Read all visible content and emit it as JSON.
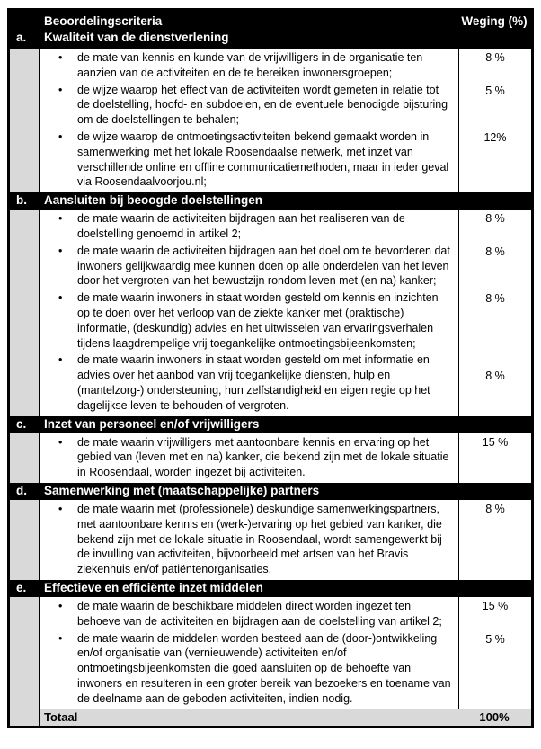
{
  "table": {
    "bullet_char": "•",
    "header": {
      "criteria": "Beoordelingscriteria",
      "weging": "Weging (%)"
    },
    "sections": [
      {
        "letter": "a.",
        "title": "Kwaliteit van de dienstverlening",
        "bullets": [
          {
            "text": "de mate van kennis en kunde van de vrijwilligers in de organisatie ten aanzien van de activiteiten en de te bereiken inwonersgroepen;",
            "weight": "8 %"
          },
          {
            "text": "de wijze waarop het effect van de activiteiten wordt gemeten in relatie tot de doelstelling, hoofd- en subdoelen, en de eventuele benodigde bijsturing om de doelstellingen te behalen;",
            "weight": "5 %"
          },
          {
            "text": "de wijze waarop de ontmoetingsactiviteiten bekend gemaakt worden in samenwerking met het lokale Roosendaalse netwerk, met inzet van verschillende online en offline communicatiemethoden, maar in ieder geval via Roosendaalvoorjou.nl;",
            "weight": "12%"
          }
        ]
      },
      {
        "letter": "b.",
        "title": "Aansluiten bij beoogde doelstellingen",
        "bullets": [
          {
            "text": "de mate waarin de activiteiten bijdragen aan het realiseren van de doelstelling genoemd in artikel 2;",
            "weight": "8 %"
          },
          {
            "text": "de mate waarin de activiteiten bijdragen aan het doel om te bevorderen dat inwoners gelijkwaardig mee kunnen doen op alle onderdelen van het leven door het vergroten van het bewustzijn rondom leven met (en na) kanker;",
            "weight": "8 %"
          },
          {
            "text": "de mate waarin inwoners in staat worden gesteld om kennis en inzichten op te doen over het verloop van de ziekte kanker met (praktische) informatie, (deskundig) advies en het uitwisselen van ervaringsverhalen tijdens laagdrempelige vrij toegankelijke ontmoetingsbijeenkomsten;",
            "weight": "8 %"
          },
          {
            "text": "de mate waarin inwoners in staat worden gesteld om met informatie en advies over het aanbod van vrij toegankelijke diensten, hulp en (mantelzorg-) ondersteuning, hun zelfstandigheid en eigen regie op het dagelijkse leven te behouden of vergroten.",
            "weight": "8 %"
          }
        ]
      },
      {
        "letter": "c.",
        "title": "Inzet van personeel en/of vrijwilligers",
        "bullets": [
          {
            "text": "de mate waarin vrijwilligers met aantoonbare kennis en ervaring op het gebied van (leven met en na) kanker, die bekend zijn met de lokale situatie in Roosendaal, worden ingezet bij activiteiten.",
            "weight": "15 %"
          }
        ]
      },
      {
        "letter": "d.",
        "title": "Samenwerking met (maatschappelijke) partners",
        "bullets": [
          {
            "text": "de mate waarin met (professionele) deskundige samenwerkingspartners, met aantoonbare kennis en (werk-)ervaring op het gebied van kanker, die bekend zijn met de lokale situatie in Roosendaal, wordt samengewerkt bij de invulling van activiteiten, bijvoorbeeld met artsen van het Bravis ziekenhuis en/of patiëntenorganisaties.",
            "weight": "8 %"
          }
        ]
      },
      {
        "letter": "e.",
        "title": "Effectieve en efficiënte inzet middelen",
        "bullets": [
          {
            "text": "de mate waarin de beschikbare middelen direct worden ingezet ten behoeve van de activiteiten en bijdragen aan de doelstelling van artikel 2;",
            "weight": "15 %"
          },
          {
            "text": "de mate waarin de middelen worden besteed aan de (door-)ontwikkeling en/of organisatie van (vernieuwende) activiteiten en/of ontmoetingsbijeenkomsten die goed aansluiten op de behoefte van inwoners en resulteren in een groter bereik van bezoekers en toename van de deelname aan de geboden activiteiten, indien nodig.",
            "weight": "5 %"
          }
        ]
      }
    ],
    "total": {
      "label": "Totaal",
      "value": "100%"
    }
  },
  "colors": {
    "header_bg": "#000000",
    "header_text": "#ffffff",
    "shade": "#d9d9d9",
    "cell_bg": "#ffffff",
    "border": "#000000"
  }
}
